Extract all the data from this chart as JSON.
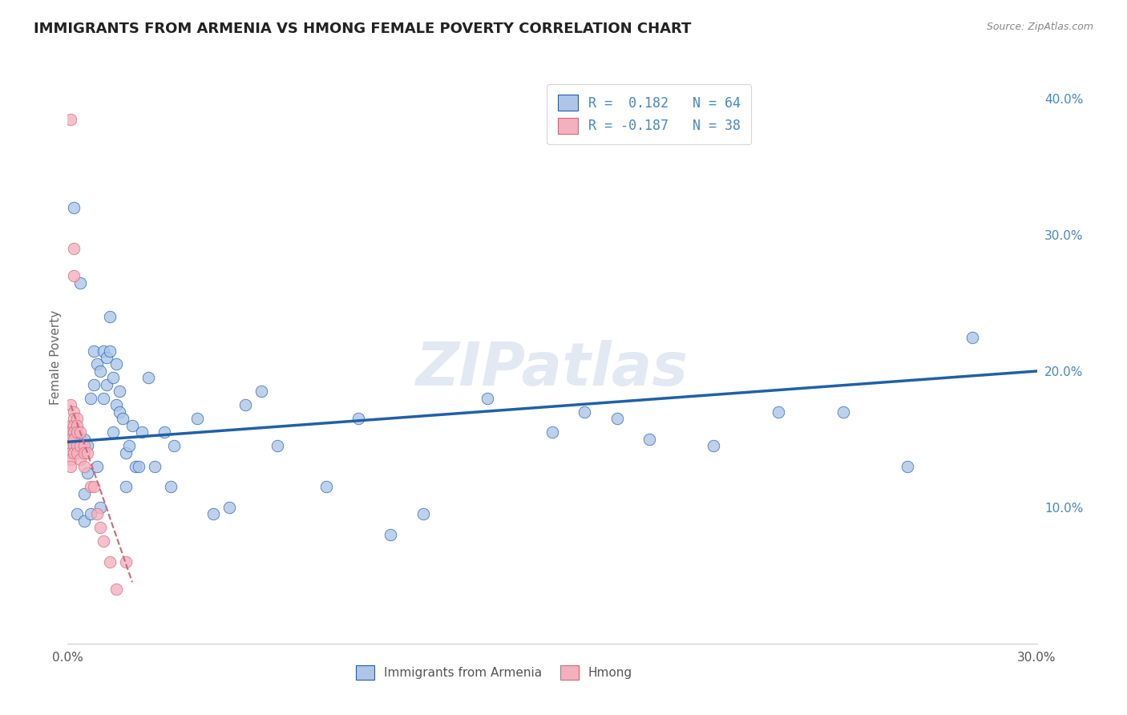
{
  "title": "IMMIGRANTS FROM ARMENIA VS HMONG FEMALE POVERTY CORRELATION CHART",
  "source": "Source: ZipAtlas.com",
  "ylabel": "Female Poverty",
  "xlim": [
    0,
    0.3
  ],
  "ylim": [
    0,
    0.42
  ],
  "x_ticks": [
    0.0,
    0.3
  ],
  "x_tick_labels": [
    "0.0%",
    "30.0%"
  ],
  "y_ticks_right": [
    0.1,
    0.2,
    0.3,
    0.4
  ],
  "y_tick_labels_right": [
    "10.0%",
    "20.0%",
    "30.0%",
    "40.0%"
  ],
  "legend_label1": "Immigrants from Armenia",
  "legend_label2": "Hmong",
  "R1": 0.182,
  "N1": 64,
  "R2": -0.187,
  "N2": 38,
  "color_blue": "#adc6e8",
  "color_pink": "#f5b0be",
  "line_color_blue": "#2060a8",
  "line_color_pink": "#d06878",
  "watermark": "ZIPatlas",
  "background_color": "#ffffff",
  "grid_color": "#c8d8ea",
  "blue_trend_start": 0.148,
  "blue_trend_end": 0.2,
  "pink_trend_start_x": 0.001,
  "pink_trend_start_y": 0.175,
  "pink_trend_end_x": 0.02,
  "pink_trend_end_y": 0.045,
  "blue_x": [
    0.001,
    0.002,
    0.003,
    0.003,
    0.004,
    0.004,
    0.005,
    0.005,
    0.005,
    0.006,
    0.006,
    0.007,
    0.007,
    0.008,
    0.008,
    0.009,
    0.009,
    0.01,
    0.01,
    0.011,
    0.011,
    0.012,
    0.012,
    0.013,
    0.013,
    0.014,
    0.014,
    0.015,
    0.015,
    0.016,
    0.016,
    0.017,
    0.018,
    0.018,
    0.019,
    0.02,
    0.021,
    0.022,
    0.023,
    0.025,
    0.027,
    0.03,
    0.032,
    0.033,
    0.04,
    0.045,
    0.05,
    0.055,
    0.06,
    0.065,
    0.08,
    0.09,
    0.1,
    0.11,
    0.13,
    0.15,
    0.16,
    0.17,
    0.18,
    0.2,
    0.22,
    0.24,
    0.26,
    0.28
  ],
  "blue_y": [
    0.155,
    0.32,
    0.145,
    0.095,
    0.15,
    0.265,
    0.15,
    0.11,
    0.09,
    0.145,
    0.125,
    0.18,
    0.095,
    0.215,
    0.19,
    0.205,
    0.13,
    0.2,
    0.1,
    0.215,
    0.18,
    0.21,
    0.19,
    0.24,
    0.215,
    0.195,
    0.155,
    0.205,
    0.175,
    0.185,
    0.17,
    0.165,
    0.14,
    0.115,
    0.145,
    0.16,
    0.13,
    0.13,
    0.155,
    0.195,
    0.13,
    0.155,
    0.115,
    0.145,
    0.165,
    0.095,
    0.1,
    0.175,
    0.185,
    0.145,
    0.115,
    0.165,
    0.08,
    0.095,
    0.18,
    0.155,
    0.17,
    0.165,
    0.15,
    0.145,
    0.17,
    0.17,
    0.13,
    0.225
  ],
  "pink_x": [
    0.001,
    0.001,
    0.001,
    0.001,
    0.001,
    0.001,
    0.001,
    0.001,
    0.001,
    0.002,
    0.002,
    0.002,
    0.002,
    0.002,
    0.002,
    0.002,
    0.002,
    0.002,
    0.003,
    0.003,
    0.003,
    0.003,
    0.003,
    0.004,
    0.004,
    0.004,
    0.005,
    0.005,
    0.005,
    0.006,
    0.007,
    0.008,
    0.009,
    0.01,
    0.011,
    0.013,
    0.015,
    0.018
  ],
  "pink_y": [
    0.385,
    0.175,
    0.16,
    0.155,
    0.15,
    0.145,
    0.14,
    0.135,
    0.13,
    0.29,
    0.27,
    0.17,
    0.165,
    0.16,
    0.155,
    0.15,
    0.145,
    0.14,
    0.165,
    0.16,
    0.155,
    0.145,
    0.14,
    0.155,
    0.145,
    0.135,
    0.145,
    0.14,
    0.13,
    0.14,
    0.115,
    0.115,
    0.095,
    0.085,
    0.075,
    0.06,
    0.04,
    0.06
  ]
}
